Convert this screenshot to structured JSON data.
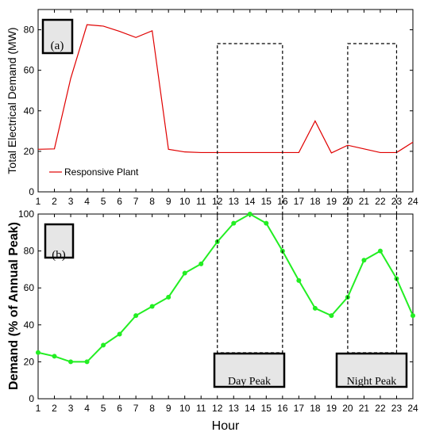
{
  "chart_data": [
    {
      "type": "line",
      "panel_label": "(a)",
      "ylabel": "Total Electrical Demand (MW)",
      "xlabel": "",
      "x": [
        1,
        2,
        3,
        4,
        5,
        6,
        7,
        8,
        9,
        10,
        11,
        12,
        13,
        14,
        15,
        16,
        17,
        18,
        19,
        20,
        21,
        22,
        23,
        24
      ],
      "xlim": [
        1,
        24
      ],
      "ylim": [
        0,
        90
      ],
      "yticks": [
        0,
        20,
        40,
        60,
        80
      ],
      "series": [
        {
          "name": "Responsive Plant",
          "color": "#e00000",
          "values": [
            21,
            21.2,
            56,
            82.5,
            81.8,
            79.2,
            76.2,
            79.5,
            21,
            19.7,
            19.4,
            19.4,
            19.4,
            19.4,
            19.4,
            19.4,
            19.4,
            35,
            19.2,
            23,
            21.2,
            19.4,
            19.4,
            24.5
          ]
        }
      ],
      "legend": "bottom-left",
      "grid": false
    },
    {
      "type": "line",
      "panel_label": "(b)",
      "ylabel": "Demand (% of Annual Peak)",
      "xlabel": "Hour",
      "x": [
        1,
        2,
        3,
        4,
        5,
        6,
        7,
        8,
        9,
        10,
        11,
        12,
        13,
        14,
        15,
        16,
        17,
        18,
        19,
        20,
        21,
        22,
        23,
        24
      ],
      "xlim": [
        1,
        24
      ],
      "ylim": [
        0,
        100
      ],
      "yticks": [
        0,
        20,
        40,
        60,
        80,
        100
      ],
      "series": [
        {
          "color": "#22ee22",
          "markers": true,
          "values": [
            25,
            23,
            20,
            20,
            29,
            35,
            45,
            50,
            55,
            68,
            73,
            85,
            95,
            100,
            95,
            80,
            64,
            49,
            45,
            55,
            75,
            80,
            65,
            45
          ]
        }
      ],
      "grid": false
    }
  ],
  "annotations": {
    "day_peak": {
      "label": "Day Peak",
      "x_range": [
        12,
        16
      ]
    },
    "night_peak": {
      "label": "Night Peak",
      "x_range": [
        20,
        23
      ]
    }
  }
}
